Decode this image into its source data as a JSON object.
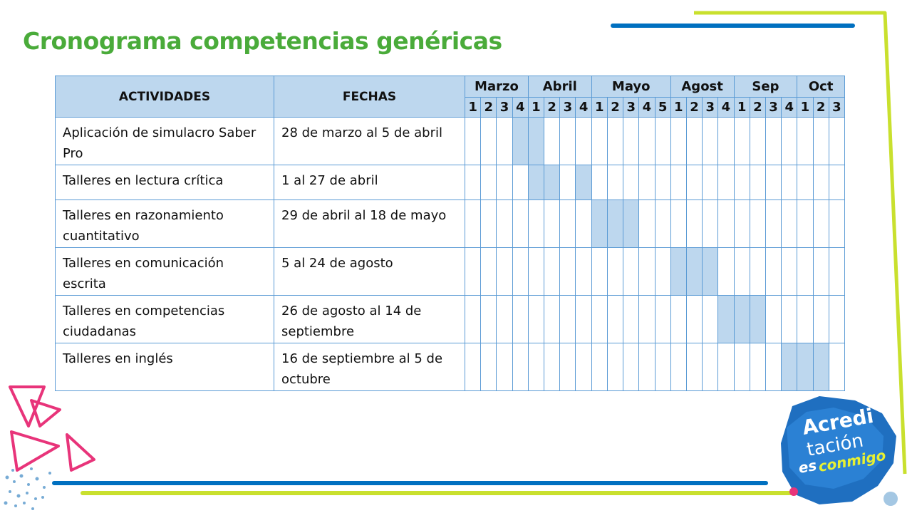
{
  "slide": {
    "title": "Cronograma competencias genéricas"
  },
  "colors": {
    "title_green": "#4aab3a",
    "header_fill": "#bdd7ee",
    "border_blue": "#5b9bd5",
    "accent_blue": "#0070c0",
    "accent_lime": "#c9e02e",
    "accent_pink": "#e8347a"
  },
  "table": {
    "col_activities": "ACTIVIDADES",
    "col_dates": "FECHAS",
    "months": [
      {
        "name": "Marzo",
        "weeks": [
          "1",
          "2",
          "3",
          "4"
        ]
      },
      {
        "name": "Abril",
        "weeks": [
          "1",
          "2",
          "3",
          "4"
        ]
      },
      {
        "name": "Mayo",
        "weeks": [
          "1",
          "2",
          "3",
          "4",
          "5"
        ]
      },
      {
        "name": "Agost",
        "weeks": [
          "1",
          "2",
          "3",
          "4"
        ]
      },
      {
        "name": "Sep",
        "weeks": [
          "1",
          "2",
          "3",
          "4"
        ]
      },
      {
        "name": "Oct",
        "weeks": [
          "1",
          "2",
          "3"
        ]
      }
    ],
    "rows": [
      {
        "activity": "Aplicación de simulacro Saber Pro",
        "dates": "28 de marzo al 5 de abril",
        "active_weeks": [
          3,
          4
        ]
      },
      {
        "activity": "Talleres en lectura crítica",
        "dates": "1 al 27 de abril",
        "active_weeks": [
          4,
          5,
          7
        ]
      },
      {
        "activity": "Talleres en razonamiento cuantitativo",
        "dates": "29 de abril al 18 de mayo",
        "active_weeks": [
          8,
          9,
          10
        ]
      },
      {
        "activity": "Talleres en comunicación escrita",
        "dates": "5 al 24 de agosto",
        "active_weeks": [
          13,
          14,
          15
        ]
      },
      {
        "activity": "Talleres en competencias ciudadanas",
        "dates": "26 de agosto al 14 de septiembre",
        "active_weeks": [
          16,
          17,
          18
        ]
      },
      {
        "activity": "Talleres en inglés",
        "dates": "16 de septiembre al 5 de octubre",
        "active_weeks": [
          20,
          21,
          22
        ]
      }
    ]
  },
  "logo": {
    "line1": "Acredi",
    "line2": "tación",
    "line3": "es",
    "line4": "conmigo"
  }
}
